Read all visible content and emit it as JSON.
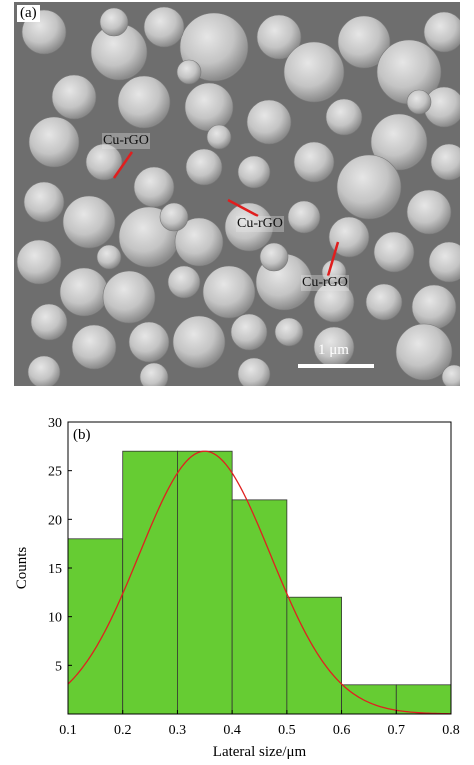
{
  "sem": {
    "panel_label": "(a)",
    "annotations": [
      "Cu-rGO",
      "Cu-rGO",
      "Cu-rGO"
    ],
    "scale_bar_label": "1 μm"
  },
  "chart_data": {
    "type": "bar",
    "panel_label": "(b)",
    "categories": [
      "0.1-0.2",
      "0.2-0.3",
      "0.3-0.4",
      "0.4-0.5",
      "0.5-0.6",
      "0.6-0.7",
      "0.7-0.8"
    ],
    "bin_edges": [
      0.1,
      0.2,
      0.3,
      0.4,
      0.5,
      0.6,
      0.7,
      0.8
    ],
    "values": [
      18,
      27,
      27,
      22,
      12,
      3,
      3
    ],
    "fit_curve": {
      "type": "gaussian",
      "peak": 27,
      "center": 0.35,
      "sigma": 0.12
    },
    "xlabel": "Lateral size/μm",
    "ylabel": "Counts",
    "xlim": [
      0.1,
      0.8
    ],
    "ylim": [
      0,
      30
    ],
    "xticks": [
      0.1,
      0.2,
      0.3,
      0.4,
      0.5,
      0.6,
      0.7,
      0.8
    ],
    "yticks": [
      5,
      10,
      15,
      20,
      25,
      30
    ],
    "grid": false,
    "colors": {
      "bar_fill": "#66cc33",
      "bar_edge": "#333333",
      "curve": "#e02020"
    }
  }
}
